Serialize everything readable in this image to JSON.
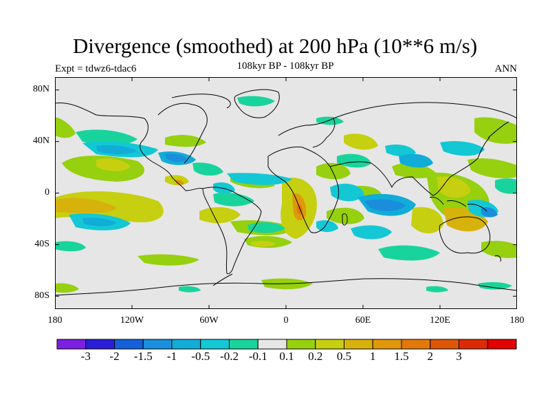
{
  "title": "Divergence (smoothed) at 200 hPa (10**6 m/s)",
  "subtitle_left": "Expt = tdwz6-tdac6",
  "subtitle_center": "108kyr BP - 108kyr BP",
  "subtitle_right": "ANN",
  "y_ticks": [
    "80N",
    "40N",
    "0",
    "40S",
    "80S"
  ],
  "x_ticks": [
    "180",
    "120W",
    "60W",
    "0",
    "60E",
    "120E",
    "180"
  ],
  "colorbar": {
    "colors": [
      "#7b1fe0",
      "#2a1ed6",
      "#1460d8",
      "#1a8edc",
      "#12acd8",
      "#13c8d4",
      "#18d49c",
      "#e6e6e6",
      "#96d00e",
      "#c6cf10",
      "#d8b20c",
      "#e0980a",
      "#e27808",
      "#dc5606",
      "#dc2a06",
      "#e00000"
    ],
    "labels": [
      "-3",
      "-2",
      "-1.5",
      "-1",
      "-0.5",
      "-0.2",
      "-0.1",
      "0.1",
      "0.2",
      "0.5",
      "1",
      "1.5",
      "2",
      "3"
    ]
  }
}
